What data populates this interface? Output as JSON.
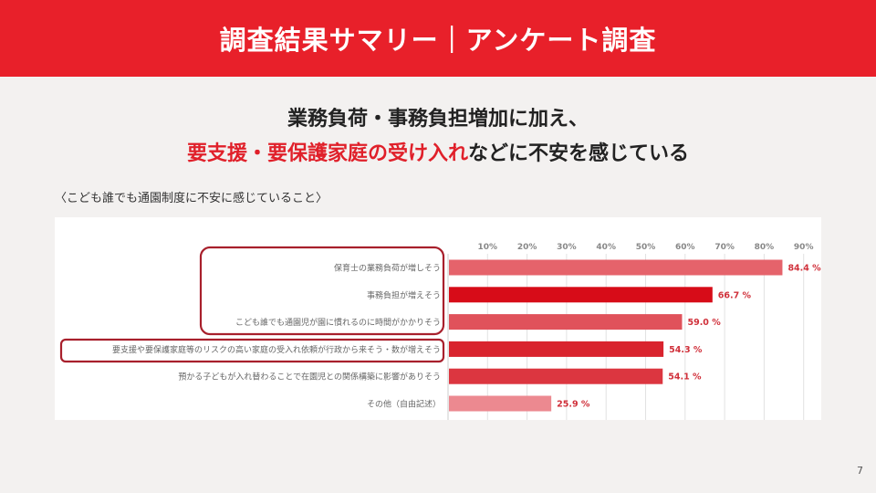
{
  "header": {
    "title": "調査結果サマリー｜アンケート調査"
  },
  "headline": {
    "line1": "業務負荷・事務負担増加に加え、",
    "line2_red": "要支援・要保護家庭の受け入れ",
    "line2_rest": "などに不安を感じている"
  },
  "subtitle": "〈こども誰でも通園制度に不安に感じていること〉",
  "page_number": "7",
  "chart_data": {
    "type": "bar",
    "orientation": "horizontal",
    "categories": [
      "保育士の業務負荷が増しそう",
      "事務負担が増えそう",
      "こども誰でも通園児が園に慣れるのに時間がかかりそう",
      "要支援や要保護家庭等のリスクの高い家庭の受入れ依頼が行政から来そう・数が増えそう",
      "預かる子どもが入れ替わることで在園児との関係構築に影響がありそう",
      "その他（自由記述）"
    ],
    "values": [
      84.4,
      66.7,
      59.0,
      54.3,
      54.1,
      25.9
    ],
    "value_labels": [
      "84.4 %",
      "66.7 %",
      "59.0 %",
      "54.3 %",
      "54.1 %",
      "25.9 %"
    ],
    "colors": [
      "#e5636b",
      "#d70c18",
      "#e0525b",
      "#d9242e",
      "#dc3640",
      "#ec8990"
    ],
    "ticks": [
      10,
      20,
      30,
      40,
      50,
      60,
      70,
      80,
      90
    ],
    "tick_labels": [
      "10%",
      "20%",
      "30%",
      "40%",
      "50%",
      "60%",
      "70%",
      "80%",
      "90%"
    ],
    "xlim": [
      0,
      95
    ],
    "grid": true,
    "highlight_groups": [
      [
        0,
        1,
        2
      ],
      [
        3
      ]
    ]
  }
}
